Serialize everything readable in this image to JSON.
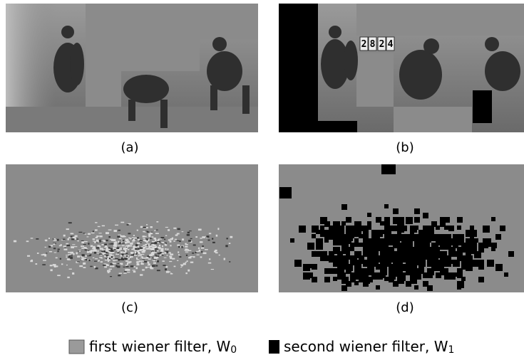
{
  "panels": [
    {
      "label": "(a)"
    },
    {
      "label": "(b)",
      "scoreboard": [
        "2",
        "8",
        "2",
        "4"
      ]
    },
    {
      "label": "(c)"
    },
    {
      "label": "(d)"
    }
  ],
  "legend": [
    {
      "text": "first wiener filter, W",
      "subscript": "0"
    },
    {
      "text": "second wiener filter, W",
      "subscript": "1"
    }
  ]
}
